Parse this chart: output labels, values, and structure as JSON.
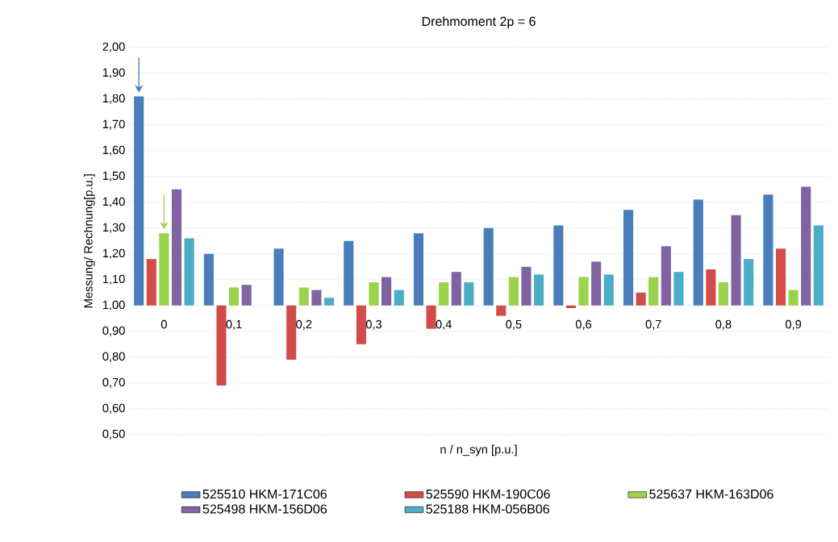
{
  "chart_data": {
    "type": "bar",
    "title": "Drehmoment  2p = 6",
    "xlabel": "n / n_syn [p.u.]",
    "ylabel": "Messung/ Rechnung[p.u.]",
    "categories": [
      "0",
      "0,1",
      "0,2",
      "0,3",
      "0,4",
      "0,5",
      "0,6",
      "0,7",
      "0,8",
      "0,9"
    ],
    "series": [
      {
        "name": "525510 HKM-171C06",
        "color": "#4a7ebb",
        "base": [
          1,
          1,
          1,
          1,
          1,
          1,
          1,
          1,
          1,
          1
        ],
        "values": [
          0.81,
          0.2,
          0.22,
          0.25,
          0.28,
          0.3,
          0.31,
          0.37,
          0.41,
          0.43
        ]
      },
      {
        "name": "525590 HKM-190C06",
        "color": "#d24d4a",
        "base": [
          1,
          1,
          1,
          1,
          1,
          1,
          1,
          1,
          1,
          1
        ],
        "values": [
          0.18,
          -0.31,
          -0.21,
          -0.15,
          -0.09,
          -0.04,
          -0.01,
          0.05,
          0.14,
          0.22
        ]
      },
      {
        "name": "525637 HKM-163D06",
        "color": "#9bd34b",
        "base": [
          1,
          1,
          1,
          1,
          1,
          1,
          1,
          1,
          1,
          1
        ],
        "values": [
          0.28,
          0.07,
          0.07,
          0.09,
          0.09,
          0.11,
          0.11,
          0.11,
          0.09,
          0.06
        ]
      },
      {
        "name": "525498 HKM-156D06",
        "color": "#8064a2",
        "base": [
          1,
          1,
          1,
          1,
          1,
          1,
          1,
          1,
          1,
          1
        ],
        "values": [
          0.45,
          0.08,
          0.06,
          0.11,
          0.13,
          0.15,
          0.17,
          0.23,
          0.35,
          0.46
        ]
      },
      {
        "name": "525188 HKM-056B06",
        "color": "#4bacc6",
        "base": [
          1,
          null,
          1,
          1,
          1,
          1,
          1,
          1,
          1,
          1
        ],
        "values": [
          0.26,
          null,
          0.03,
          0.06,
          0.09,
          0.12,
          0.12,
          0.13,
          0.18,
          0.31
        ]
      }
    ],
    "ylim": [
      0.5,
      2.0
    ],
    "yticks": [
      {
        "value": 0.5,
        "label": "0,50"
      },
      {
        "value": 0.6,
        "label": "0,60"
      },
      {
        "value": 0.7,
        "label": "0,70"
      },
      {
        "value": 0.8,
        "label": "0,80"
      },
      {
        "value": 0.9,
        "label": "0,90"
      },
      {
        "value": 1.0,
        "label": "1,00"
      },
      {
        "value": 1.1,
        "label": "1,10"
      },
      {
        "value": 1.2,
        "label": "1,20"
      },
      {
        "value": 1.3,
        "label": "1,30"
      },
      {
        "value": 1.4,
        "label": "1,40"
      },
      {
        "value": 1.5,
        "label": "1,50"
      },
      {
        "value": 1.6,
        "label": "1,60"
      },
      {
        "value": 1.7,
        "label": "1,70"
      },
      {
        "value": 1.8,
        "label": "1,80"
      },
      {
        "value": 1.9,
        "label": "1,90"
      },
      {
        "value": 2.0,
        "label": "2,00"
      }
    ],
    "grid": "y",
    "legend": "bottom"
  }
}
